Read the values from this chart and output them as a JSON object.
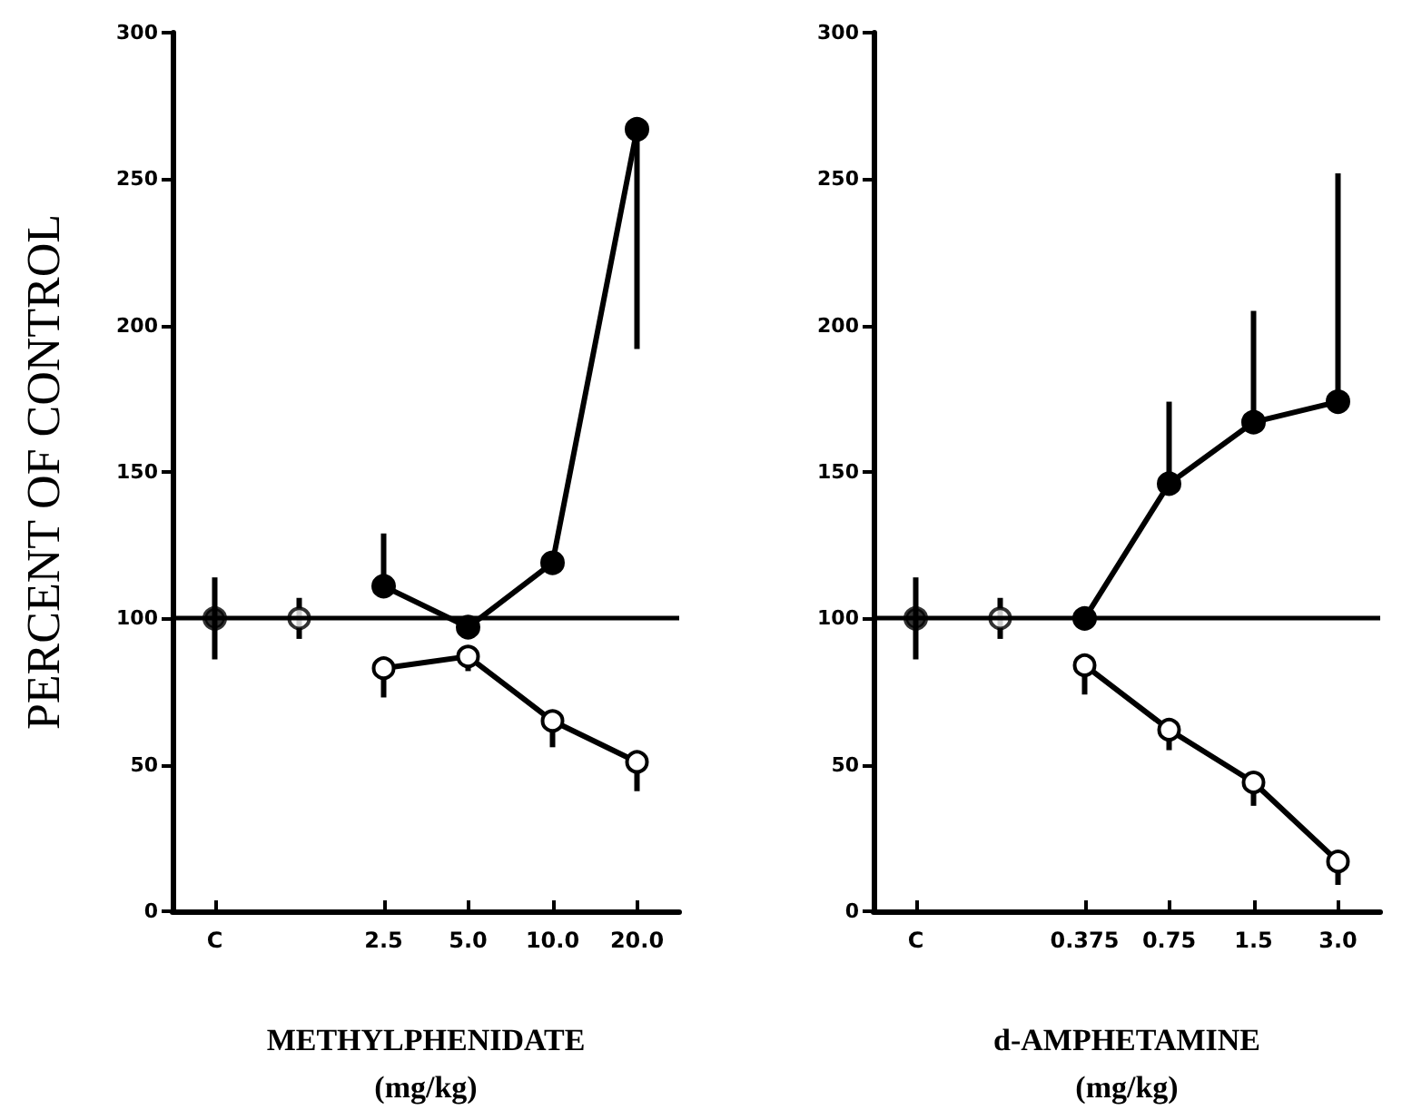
{
  "chart_data": [
    {
      "type": "line",
      "ylabel": "PERCENT OF CONTROL",
      "xlabel": "METHYLPHENIDATE\n(mg/kg)",
      "categories": [
        "C",
        null,
        "2.5",
        "5.0",
        "10.0",
        "20.0"
      ],
      "ylim": [
        0,
        300
      ],
      "yticks": [
        0,
        50,
        100,
        150,
        200,
        250,
        300
      ],
      "grid": false,
      "marker": "circle",
      "line_style": "solid",
      "series": [
        {
          "type": "scatter",
          "color": "#000000",
          "values": [
            100,
            null,
            null,
            null,
            null,
            null
          ],
          "errors": [
            14,
            null,
            null,
            null,
            null,
            null
          ]
        },
        {
          "type": "scatter",
          "color": "#000000",
          "values": [
            null,
            100,
            null,
            null,
            null,
            null
          ],
          "errors": [
            null,
            7,
            null,
            null,
            null,
            null
          ]
        },
        {
          "color": "#000000",
          "values": [
            null,
            null,
            111,
            97,
            119,
            267
          ],
          "errors": [
            null,
            null,
            [
              111,
              129
            ],
            null,
            null,
            [
              192,
              267
            ]
          ]
        },
        {
          "color": "#000000",
          "values": [
            null,
            null,
            83,
            87,
            65,
            51
          ],
          "errors": [
            null,
            null,
            [
              73,
              83
            ],
            [
              82,
              87
            ],
            [
              56,
              65
            ],
            [
              41,
              51
            ]
          ]
        }
      ],
      "ref_lines": [
        {
          "axis": "y",
          "value": 100,
          "color": "#000000",
          "line_style": "solid"
        }
      ]
    },
    {
      "type": "line",
      "xlabel": "d-AMPHETAMINE\n(mg/kg)",
      "categories": [
        "C",
        null,
        "0.375",
        "0.75",
        "1.5",
        "3.0"
      ],
      "ylim": [
        0,
        300
      ],
      "yticks": [
        0,
        50,
        100,
        150,
        200,
        250,
        300
      ],
      "grid": false,
      "marker": "circle",
      "line_style": "solid",
      "series": [
        {
          "type": "scatter",
          "color": "#000000",
          "values": [
            100,
            null,
            null,
            null,
            null,
            null
          ],
          "errors": [
            14,
            null,
            null,
            null,
            null,
            null
          ]
        },
        {
          "type": "scatter",
          "color": "#000000",
          "values": [
            null,
            100,
            null,
            null,
            null,
            null
          ],
          "errors": [
            null,
            7,
            null,
            null,
            null,
            null
          ]
        },
        {
          "color": "#000000",
          "values": [
            null,
            null,
            100,
            146,
            167,
            174
          ],
          "errors": [
            null,
            null,
            null,
            [
              146,
              174
            ],
            [
              167,
              205
            ],
            [
              174,
              252
            ]
          ]
        },
        {
          "color": "#000000",
          "values": [
            null,
            null,
            84,
            62,
            44,
            17
          ],
          "errors": [
            null,
            null,
            [
              74,
              84
            ],
            [
              55,
              62
            ],
            [
              36,
              44
            ],
            [
              9,
              17
            ]
          ]
        }
      ],
      "ref_lines": [
        {
          "axis": "y",
          "value": 100,
          "color": "#000000",
          "line_style": "solid"
        }
      ]
    }
  ]
}
